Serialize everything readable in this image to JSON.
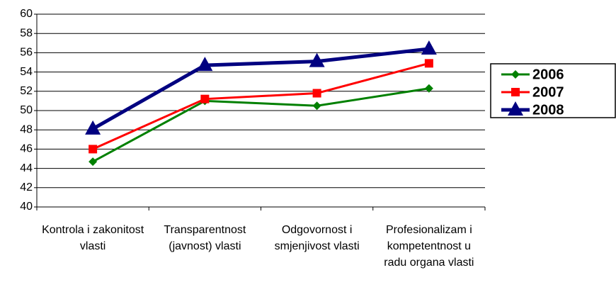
{
  "chart_data": {
    "type": "line",
    "categories": [
      "Kontrola i zakonitost vlasti",
      "Transparentnost (javnost) vlasti",
      "Odgovornost i smjenjivost vlasti",
      "Profesionalizam i kompetentnost u radu organa vlasti"
    ],
    "series": [
      {
        "name": "2006",
        "color": "#008000",
        "marker": "diamond",
        "values": [
          44.7,
          51.0,
          50.5,
          52.3
        ]
      },
      {
        "name": "2007",
        "color": "#ff0000",
        "marker": "square",
        "values": [
          46.0,
          51.2,
          51.8,
          54.9
        ]
      },
      {
        "name": "2008",
        "color": "#000080",
        "marker": "triangle",
        "values": [
          48.1,
          54.7,
          55.1,
          56.4
        ]
      }
    ],
    "ylim": [
      40,
      60
    ],
    "yticks": [
      40,
      42,
      44,
      46,
      48,
      50,
      52,
      54,
      56,
      58,
      60
    ],
    "grid": true,
    "legend": "right"
  }
}
